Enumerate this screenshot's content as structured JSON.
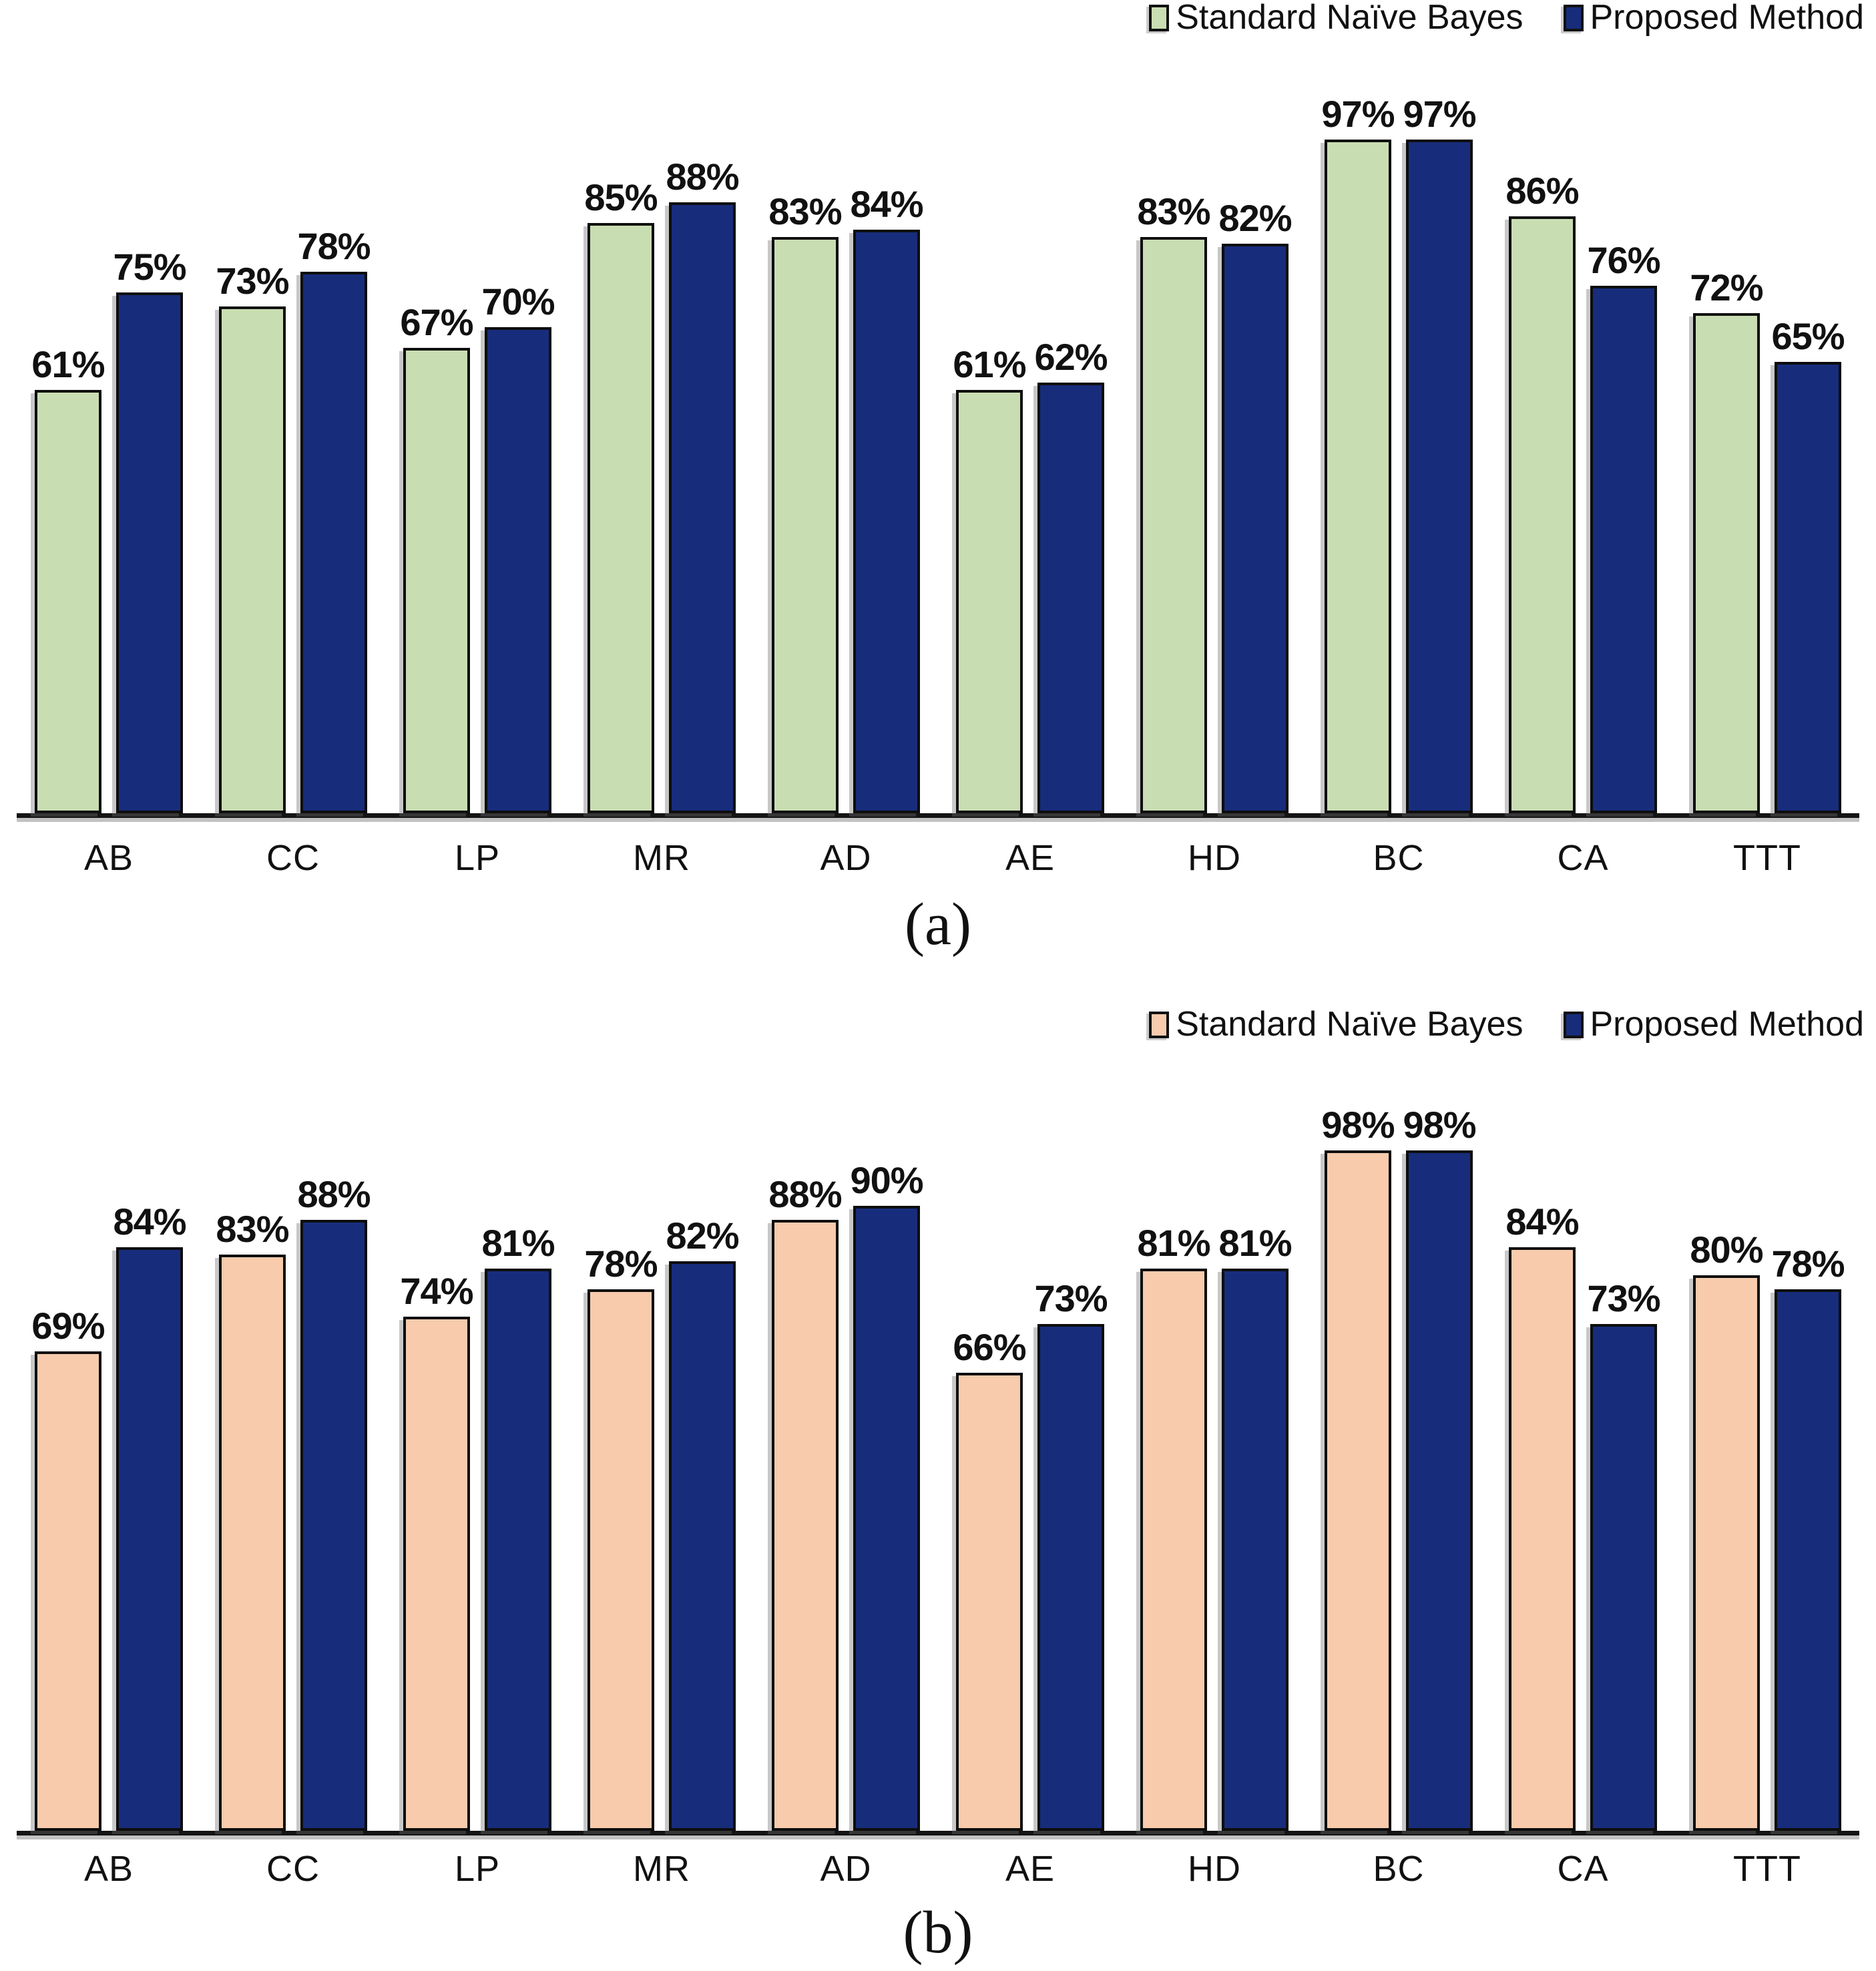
{
  "value_suffix": "%",
  "colors": {
    "standard_naive_bayes_a": "#c9ddb2",
    "standard_naive_bayes_b": "#f7cbac",
    "proposed_method": "#172d7c",
    "bar_outline": "#0d0d0d",
    "axis_line": "#141414"
  },
  "chart_data": [
    {
      "type": "bar",
      "caption": "(a)",
      "categories": [
        "AB",
        "CC",
        "LP",
        "MR",
        "AD",
        "AE",
        "HD",
        "BC",
        "CA",
        "TTT"
      ],
      "series": [
        {
          "name": "Standard Naïve Bayes",
          "color": "#c9ddb2",
          "values": [
            61,
            73,
            67,
            85,
            83,
            61,
            83,
            97,
            86,
            72
          ]
        },
        {
          "name": "Proposed Method",
          "color": "#172d7c",
          "values": [
            75,
            78,
            70,
            88,
            84,
            62,
            82,
            97,
            76,
            65
          ]
        }
      ],
      "ylim": [
        0,
        100
      ],
      "grid": false,
      "legend_position": "top-right",
      "xlabel": "",
      "ylabel": ""
    },
    {
      "type": "bar",
      "caption": "(b)",
      "categories": [
        "AB",
        "CC",
        "LP",
        "MR",
        "AD",
        "AE",
        "HD",
        "BC",
        "CA",
        "TTT"
      ],
      "series": [
        {
          "name": "Standard Naïve Bayes",
          "color": "#f7cbac",
          "values": [
            69,
            83,
            74,
            78,
            88,
            66,
            81,
            98,
            84,
            80
          ]
        },
        {
          "name": "Proposed Method",
          "color": "#172d7c",
          "values": [
            84,
            88,
            81,
            82,
            90,
            73,
            81,
            98,
            73,
            78
          ]
        }
      ],
      "ylim": [
        0,
        100
      ],
      "grid": false,
      "legend_position": "top-right",
      "xlabel": "",
      "ylabel": ""
    }
  ]
}
